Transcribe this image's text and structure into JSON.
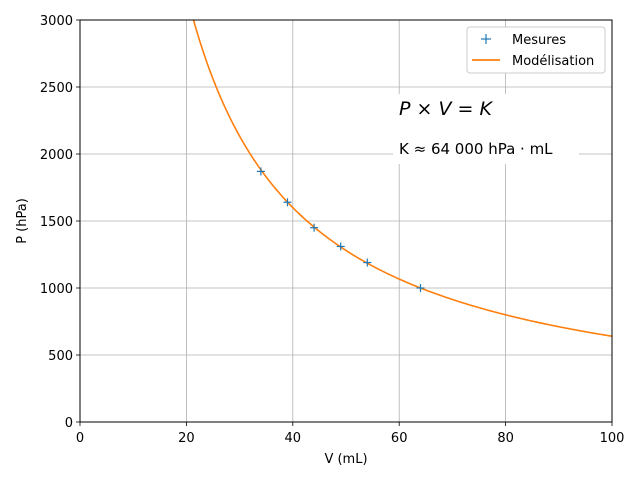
{
  "chart_data": {
    "type": "scatter",
    "xlabel": "V (mL)",
    "ylabel": "P (hPa)",
    "xlim": [
      0,
      100
    ],
    "ylim": [
      0,
      3000
    ],
    "x_ticks": [
      "0",
      "20",
      "40",
      "60",
      "80",
      "100"
    ],
    "y_ticks": [
      "0",
      "500",
      "1000",
      "1500",
      "2000",
      "2500",
      "3000"
    ],
    "grid": true,
    "legend_position": "top-right",
    "series": [
      {
        "name": "Mesures",
        "kind": "points",
        "marker": "+",
        "color": "#1f77b4",
        "x": [
          34,
          39,
          44,
          49,
          54,
          64
        ],
        "y": [
          1870,
          1640,
          1450,
          1310,
          1190,
          1000
        ]
      },
      {
        "name": "Modélisation",
        "kind": "line",
        "color": "#ff7f0e",
        "model": "P = K / V",
        "K": 64000
      }
    ],
    "annotations": {
      "law": "P × V = K",
      "constant": "K ≈ 64 000 hPa · mL"
    }
  }
}
